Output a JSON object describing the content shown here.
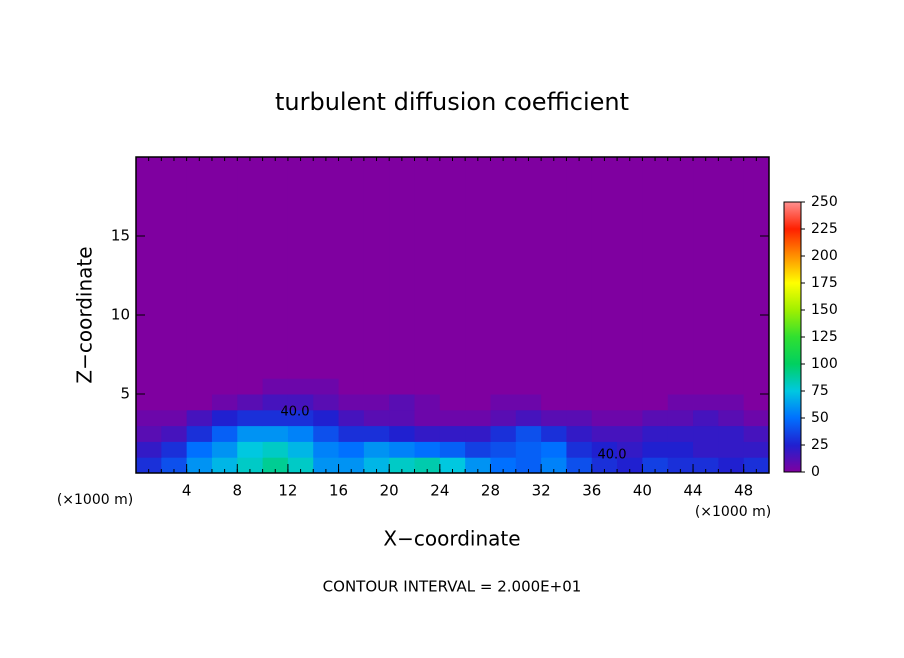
{
  "chart_data": {
    "type": "heatmap",
    "title": "turbulent diffusion coefficient",
    "xlabel": "X−coordinate",
    "ylabel": "Z−coordinate",
    "xunit_left": "(×1000 m)",
    "xunit_right": "(×1000 m)",
    "footnote": "CONTOUR INTERVAL = 2.000E+01",
    "annotations": [
      "40.0",
      "40.0"
    ],
    "xlim": [
      0,
      50
    ],
    "ylim": [
      0,
      20
    ],
    "xticks": [
      4,
      8,
      12,
      16,
      20,
      24,
      28,
      32,
      36,
      40,
      44,
      48
    ],
    "yticks": [
      5,
      10,
      15
    ],
    "xbins": [
      0,
      2,
      4,
      6,
      8,
      10,
      12,
      14,
      16,
      18,
      20,
      22,
      24,
      26,
      28,
      30,
      32,
      34,
      36,
      38,
      40,
      42,
      44,
      46,
      48,
      50
    ],
    "ybins": [
      0,
      1,
      2,
      3,
      4,
      5,
      6,
      20
    ],
    "z": [
      [
        30,
        40,
        60,
        70,
        80,
        90,
        80,
        60,
        60,
        70,
        80,
        85,
        75,
        60,
        50,
        45,
        55,
        40,
        30,
        25,
        35,
        30,
        30,
        25,
        30
      ],
      [
        20,
        30,
        50,
        60,
        75,
        80,
        70,
        55,
        50,
        60,
        55,
        50,
        45,
        35,
        40,
        45,
        50,
        30,
        25,
        20,
        25,
        25,
        20,
        20,
        20
      ],
      [
        10,
        15,
        30,
        45,
        60,
        60,
        55,
        40,
        30,
        30,
        25,
        20,
        20,
        20,
        30,
        40,
        30,
        20,
        15,
        15,
        20,
        20,
        20,
        20,
        15
      ],
      [
        5,
        5,
        15,
        25,
        30,
        30,
        30,
        25,
        15,
        10,
        10,
        5,
        5,
        5,
        10,
        15,
        10,
        10,
        5,
        5,
        10,
        10,
        15,
        10,
        5
      ],
      [
        0,
        0,
        0,
        5,
        10,
        15,
        15,
        10,
        5,
        5,
        10,
        5,
        0,
        0,
        5,
        5,
        0,
        0,
        0,
        0,
        0,
        5,
        5,
        5,
        0
      ],
      [
        0,
        0,
        0,
        0,
        0,
        5,
        5,
        5,
        0,
        0,
        0,
        0,
        0,
        0,
        0,
        0,
        0,
        0,
        0,
        0,
        0,
        0,
        0,
        0,
        0
      ],
      [
        0,
        0,
        0,
        0,
        0,
        0,
        0,
        0,
        0,
        0,
        0,
        0,
        0,
        0,
        0,
        0,
        0,
        0,
        0,
        0,
        0,
        0,
        0,
        0,
        0
      ]
    ],
    "clim": [
      0,
      250
    ],
    "cticks": [
      0,
      25,
      50,
      75,
      100,
      125,
      150,
      175,
      200,
      225,
      250
    ],
    "colorscale": [
      "#7f00a0",
      "#2020d0",
      "#0070ff",
      "#00c8e0",
      "#00d060",
      "#30e030",
      "#a0f000",
      "#ffff00",
      "#ff9000",
      "#ff2000",
      "#ff9090"
    ]
  }
}
